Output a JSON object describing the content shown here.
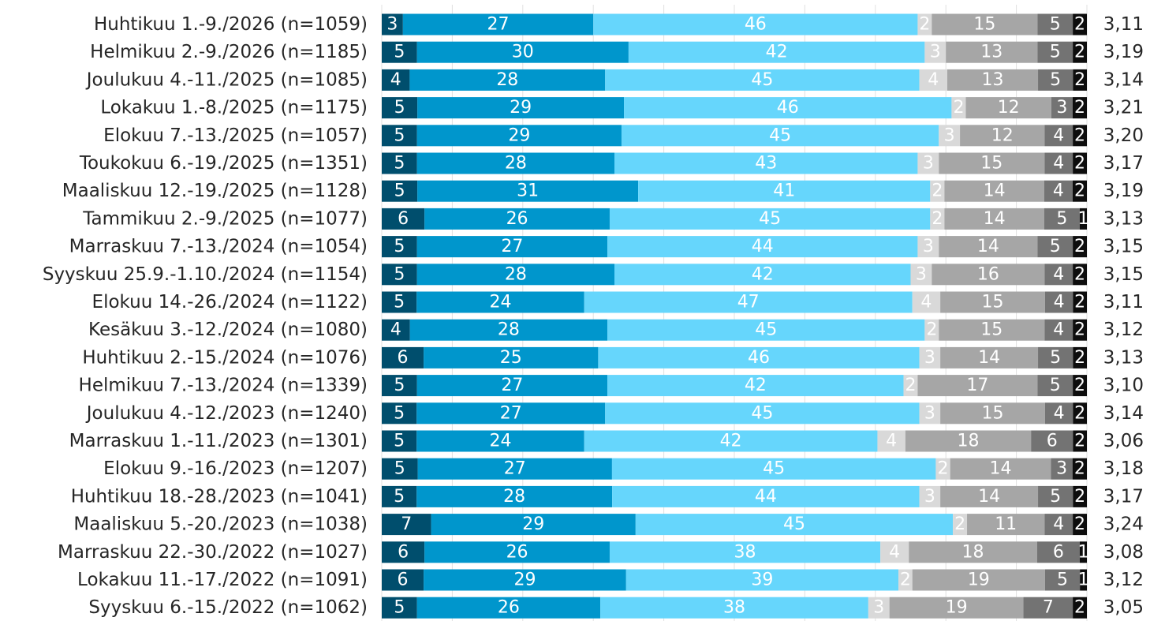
{
  "chart_data": {
    "type": "bar",
    "orientation": "horizontal",
    "stacked": true,
    "percent_stacked": true,
    "grid": true,
    "legend": "none",
    "categories": [
      "Huhtikuu 1.-9./2026 (n=1059)",
      "Helmikuu 2.-9./2026 (n=1185)",
      "Joulukuu 4.-11./2025 (n=1085)",
      "Lokakuu 1.-8./2025 (n=1175)",
      "Elokuu 7.-13./2025 (n=1057)",
      "Toukokuu 6.-19./2025 (n=1351)",
      "Maaliskuu 12.-19./2025 (n=1128)",
      "Tammikuu 2.-9./2025 (n=1077)",
      "Marraskuu 7.-13./2024 (n=1054)",
      "Syyskuu 25.9.-1.10./2024 (n=1154)",
      "Elokuu 14.-26./2024 (n=1122)",
      "Kesäkuu 3.-12./2024 (n=1080)",
      "Huhtikuu 2.-15./2024 (n=1076)",
      "Helmikuu 7.-13./2024 (n=1339)",
      "Joulukuu 4.-12./2023 (n=1240)",
      "Marraskuu 1.-11./2023 (n=1301)",
      "Elokuu 9.-16./2023 (n=1207)",
      "Huhtikuu 18.-28./2023 (n=1041)",
      "Maaliskuu 5.-20./2023 (n=1038)",
      "Marraskuu 22.-30./2022 (n=1027)",
      "Lokakuu 11.-17./2022 (n=1091)",
      "Syyskuu 6.-15./2022 (n=1062)"
    ],
    "series": [
      {
        "color": "#004e6d",
        "text_color": "#ffffff",
        "values": [
          3,
          5,
          4,
          5,
          5,
          5,
          5,
          6,
          5,
          5,
          5,
          4,
          6,
          5,
          5,
          5,
          5,
          5,
          7,
          6,
          6,
          5
        ]
      },
      {
        "color": "#0096cc",
        "text_color": "#ffffff",
        "values": [
          27,
          30,
          28,
          29,
          29,
          28,
          31,
          26,
          27,
          28,
          24,
          28,
          25,
          27,
          27,
          24,
          27,
          28,
          29,
          26,
          29,
          26
        ]
      },
      {
        "color": "#66d6fc",
        "text_color": "#ffffff",
        "values": [
          46,
          42,
          45,
          46,
          45,
          43,
          41,
          45,
          44,
          42,
          47,
          45,
          46,
          42,
          45,
          42,
          45,
          44,
          45,
          38,
          39,
          38
        ]
      },
      {
        "color": "#d9d9d9",
        "text_color": "#ffffff",
        "values": [
          2,
          3,
          4,
          2,
          3,
          3,
          2,
          2,
          3,
          3,
          4,
          2,
          3,
          2,
          3,
          4,
          2,
          3,
          2,
          4,
          2,
          3
        ]
      },
      {
        "color": "#a6a6a6",
        "text_color": "#ffffff",
        "values": [
          15,
          13,
          13,
          12,
          12,
          15,
          14,
          14,
          14,
          16,
          15,
          15,
          14,
          17,
          15,
          18,
          14,
          14,
          11,
          18,
          19,
          19
        ]
      },
      {
        "color": "#737373",
        "text_color": "#ffffff",
        "values": [
          5,
          5,
          5,
          3,
          4,
          4,
          4,
          5,
          5,
          4,
          4,
          4,
          5,
          5,
          4,
          6,
          3,
          5,
          4,
          6,
          5,
          7
        ]
      },
      {
        "color": "#0d0d0d",
        "text_color": "#ffffff",
        "values": [
          2,
          2,
          2,
          2,
          2,
          2,
          2,
          1,
          2,
          2,
          2,
          2,
          2,
          2,
          2,
          2,
          2,
          2,
          2,
          1,
          1,
          2
        ]
      }
    ],
    "mean_values": [
      "3,11",
      "3,19",
      "3,14",
      "3,21",
      "3,20",
      "3,17",
      "3,19",
      "3,13",
      "3,15",
      "3,15",
      "3,11",
      "3,12",
      "3,13",
      "3,10",
      "3,14",
      "3,06",
      "3,18",
      "3,17",
      "3,24",
      "3,08",
      "3,12",
      "3,05"
    ]
  }
}
